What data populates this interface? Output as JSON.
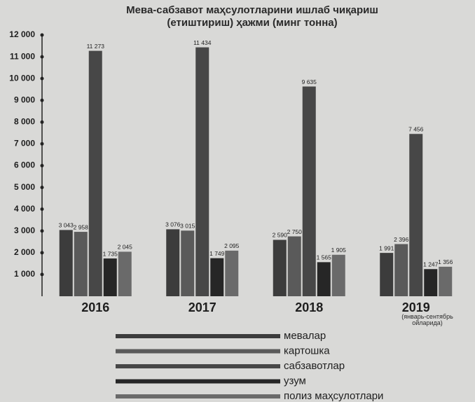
{
  "chart_data": {
    "type": "bar",
    "title": "Мева-сабзавот маҳсулотларини ишлаб чиқариш (етиштириш) ҳажми (минг тонна)",
    "annotation": "(январь-сентябрь ойларида)",
    "categories": [
      "2016",
      "2017",
      "2018",
      "2019"
    ],
    "ylim": [
      0,
      12000
    ],
    "yticks": [
      {
        "value": 1000,
        "label": "1 000"
      },
      {
        "value": 2000,
        "label": "2 000"
      },
      {
        "value": 3000,
        "label": "3 000"
      },
      {
        "value": 4000,
        "label": "4 000"
      },
      {
        "value": 5000,
        "label": "5 000"
      },
      {
        "value": 6000,
        "label": "6 000"
      },
      {
        "value": 7000,
        "label": "7 000"
      },
      {
        "value": 8000,
        "label": "8 000"
      },
      {
        "value": 9000,
        "label": "9 000"
      },
      {
        "value": 10000,
        "label": "10 000"
      },
      {
        "value": 11000,
        "label": "11 000"
      },
      {
        "value": 12000,
        "label": "12 000"
      }
    ],
    "series": [
      {
        "name": "мевалар",
        "color": "#3c3c3c",
        "values": [
          3043,
          3076,
          2590,
          1991
        ],
        "value_labels": [
          "3 043",
          "3 076",
          "2 590",
          "1 991"
        ]
      },
      {
        "name": "картошка",
        "color": "#5a5a5a",
        "values": [
          2958,
          3015,
          2750,
          2396
        ],
        "value_labels": [
          "2 958",
          "3 015",
          "2 750",
          "2 396"
        ]
      },
      {
        "name": "сабзавотлар",
        "color": "#474747",
        "values": [
          11273,
          11434,
          9635,
          7456
        ],
        "value_labels": [
          "11 273",
          "11 434",
          "9 635",
          "7 456"
        ]
      },
      {
        "name": "узум",
        "color": "#262626",
        "values": [
          1735,
          1749,
          1565,
          1247
        ],
        "value_labels": [
          "1 735",
          "1 749",
          "1 565",
          "1 247"
        ]
      },
      {
        "name": "полиз маҳсулотлари",
        "color": "#6a6a6a",
        "values": [
          2045,
          2095,
          1905,
          1356
        ],
        "value_labels": [
          "2 045",
          "2 095",
          "1 905",
          "1 356"
        ]
      }
    ]
  }
}
